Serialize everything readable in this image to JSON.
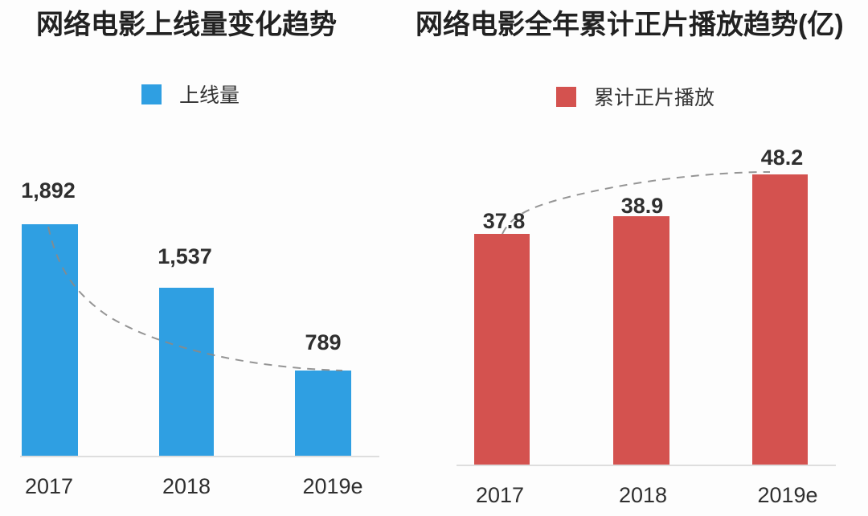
{
  "page": {
    "background": "#fdfdfd"
  },
  "colors": {
    "bar_blue": "#2f9fe2",
    "bar_red": "#d4524f",
    "trend_line": "#8a8a8a",
    "axis_line": "#dedede",
    "title_text": "#222222",
    "label_text": "#2f2f2f"
  },
  "chart_data": [
    {
      "type": "bar",
      "title": "网络电影上线量变化趋势",
      "legend": [
        {
          "label": "上线量",
          "color": "#2f9fe2"
        }
      ],
      "legend_position": "top",
      "categories": [
        "2017",
        "2018",
        "2019e"
      ],
      "values": [
        1892,
        1537,
        789
      ],
      "value_labels": [
        "1,892",
        "1,537",
        "789"
      ],
      "ylim": [
        0,
        2000
      ],
      "grid": false,
      "x_axis_line": true,
      "trendline": {
        "style": "dashed",
        "direction": "decreasing",
        "through_values": [
          1892,
          1537,
          789
        ]
      }
    },
    {
      "type": "bar",
      "title": "网络电影全年累计正片播放趋势(亿)",
      "legend": [
        {
          "label": "累计正片播放",
          "color": "#d4524f"
        }
      ],
      "legend_position": "top",
      "categories": [
        "2017",
        "2018",
        "2019e"
      ],
      "values": [
        37.8,
        38.9,
        48.2
      ],
      "value_labels": [
        "37.8",
        "38.9",
        "48.2"
      ],
      "ylim": [
        0,
        55
      ],
      "grid": false,
      "x_axis_line": true,
      "trendline": {
        "style": "dashed",
        "direction": "increasing",
        "through_values": [
          37.8,
          38.9,
          48.2
        ]
      }
    }
  ]
}
